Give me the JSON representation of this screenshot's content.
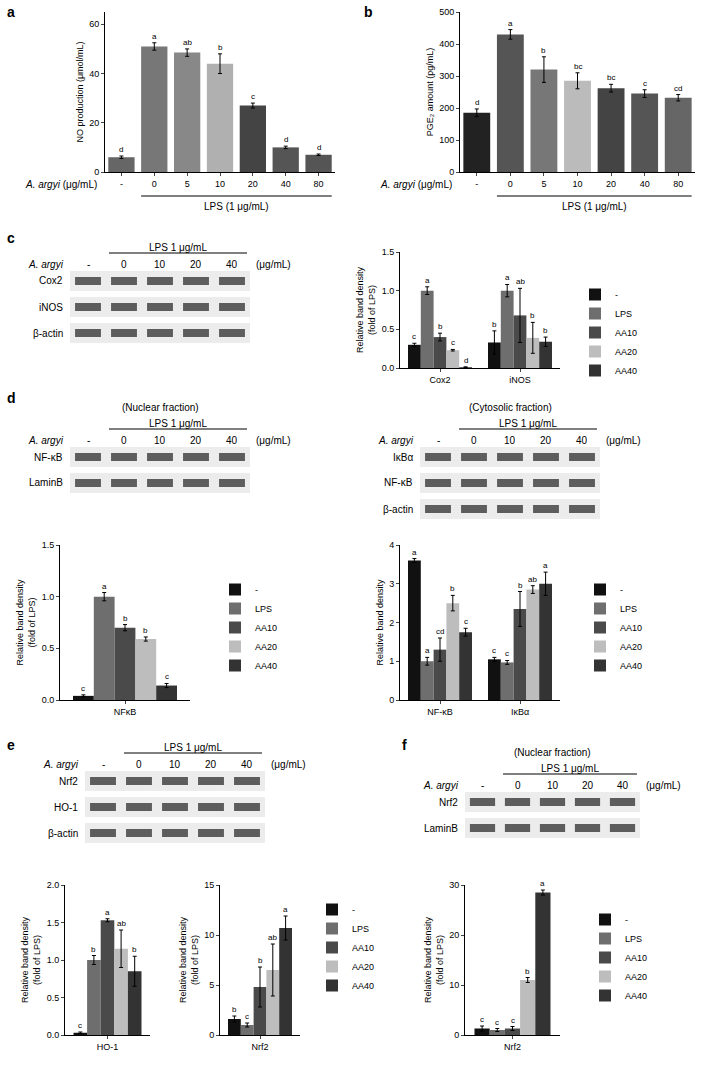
{
  "panel_labels": [
    "a",
    "b",
    "c",
    "d",
    "e",
    "f"
  ],
  "chart_data": [
    {
      "type": "bar",
      "x_label": "A. argyi (μg/mL)",
      "treatment": "LPS (1 μg/mL)",
      "y_label": "NO production (μmol/mL)",
      "categories": [
        "-",
        "0",
        "5",
        "10",
        "20",
        "40",
        "80"
      ],
      "values": [
        6,
        51,
        48.5,
        44,
        27,
        10,
        7
      ],
      "errors": [
        0.5,
        1.5,
        1.5,
        4,
        1,
        0.5,
        0.3
      ],
      "annotations": [
        "d",
        "a",
        "ab",
        "b",
        "c",
        "d",
        "d"
      ],
      "colors": [
        "#666666",
        "#777777",
        "#888888",
        "#b0b0b0",
        "#444444",
        "#555555",
        "#555555"
      ],
      "ylim": [
        0,
        65
      ],
      "yticks": [
        0,
        20,
        40,
        60
      ],
      "grid": false
    },
    {
      "type": "bar",
      "x_label": "A. argyi (μg/mL)",
      "treatment": "LPS (1 μg/mL)",
      "y_label": "PGE₂ amount (pg/mL)",
      "categories": [
        "-",
        "0",
        "5",
        "10",
        "20",
        "40",
        "80"
      ],
      "values": [
        185,
        430,
        320,
        285,
        262,
        245,
        232
      ],
      "errors": [
        12,
        15,
        40,
        25,
        12,
        12,
        10
      ],
      "annotations": [
        "d",
        "a",
        "b",
        "bc",
        "bc",
        "c",
        "cd"
      ],
      "colors": [
        "#222222",
        "#555555",
        "#777777",
        "#bbbbbb",
        "#444444",
        "#555555",
        "#666666"
      ],
      "ylim": [
        0,
        500
      ],
      "yticks": [
        0,
        100,
        200,
        300,
        400,
        500
      ],
      "grid": false
    },
    {
      "type": "bar",
      "y_label": "Relative band density\n(fold of LPS)",
      "legend": "right",
      "categories": [
        "Cox2",
        "iNOS"
      ],
      "series": [
        {
          "name": "-",
          "color": "#111111",
          "values": [
            0.3,
            0.33
          ],
          "errors": [
            0.02,
            0.15
          ],
          "annotations": [
            "c",
            "b"
          ]
        },
        {
          "name": "LPS",
          "color": "#6e6e6e",
          "values": [
            1.0,
            1.0
          ],
          "errors": [
            0.05,
            0.08
          ],
          "annotations": [
            "a",
            "a"
          ]
        },
        {
          "name": "AA10",
          "color": "#4a4a4a",
          "values": [
            0.4,
            0.68
          ],
          "errors": [
            0.05,
            0.35
          ],
          "annotations": [
            "b",
            "ab"
          ]
        },
        {
          "name": "AA20",
          "color": "#bdbdbd",
          "values": [
            0.23,
            0.39
          ],
          "errors": [
            0.01,
            0.2
          ],
          "annotations": [
            "c",
            "b"
          ]
        },
        {
          "name": "AA40",
          "color": "#333333",
          "values": [
            0.01,
            0.34
          ],
          "errors": [
            0.005,
            0.06
          ],
          "annotations": [
            "d",
            "b"
          ]
        }
      ],
      "ylim": [
        0,
        1.5
      ],
      "yticks": [
        {
          "value": 0,
          "label": "0.0"
        },
        {
          "value": 0.5,
          "label": "0.5"
        },
        {
          "value": 1,
          "label": "1.0"
        },
        {
          "value": 1.5,
          "label": "1.5"
        }
      ],
      "grid": false
    },
    {
      "type": "bar",
      "y_label": "Relative band density\n(fold of LPS)",
      "legend": "right",
      "categories": [
        "NFκB"
      ],
      "series": [
        {
          "name": "-",
          "color": "#111111",
          "values": [
            0.04
          ],
          "errors": [
            0.01
          ],
          "annotations": [
            "c"
          ]
        },
        {
          "name": "LPS",
          "color": "#6e6e6e",
          "values": [
            1.0
          ],
          "errors": [
            0.04
          ],
          "annotations": [
            "a"
          ]
        },
        {
          "name": "AA10",
          "color": "#4a4a4a",
          "values": [
            0.7
          ],
          "errors": [
            0.03
          ],
          "annotations": [
            "b"
          ]
        },
        {
          "name": "AA20",
          "color": "#bdbdbd",
          "values": [
            0.59
          ],
          "errors": [
            0.02
          ],
          "annotations": [
            "b"
          ]
        },
        {
          "name": "AA40",
          "color": "#333333",
          "values": [
            0.14
          ],
          "errors": [
            0.02
          ],
          "annotations": [
            "c"
          ]
        }
      ],
      "ylim": [
        0,
        1.5
      ],
      "yticks": [
        {
          "value": 0,
          "label": "0.0"
        },
        {
          "value": 0.5,
          "label": "0.5"
        },
        {
          "value": 1,
          "label": "1.0"
        },
        {
          "value": 1.5,
          "label": "1.5"
        }
      ],
      "grid": false
    },
    {
      "type": "bar",
      "y_label": "Relative band density",
      "legend": "right",
      "categories": [
        "NF-κB",
        "IκBα"
      ],
      "series": [
        {
          "name": "-",
          "color": "#111111",
          "values": [
            3.6,
            1.05
          ],
          "errors": [
            0.05,
            0.05
          ],
          "annotations": [
            "a",
            "c"
          ]
        },
        {
          "name": "LPS",
          "color": "#6e6e6e",
          "values": [
            1.0,
            0.97
          ],
          "errors": [
            0.1,
            0.05
          ],
          "annotations": [
            "a",
            "c"
          ]
        },
        {
          "name": "AA10",
          "color": "#4a4a4a",
          "values": [
            1.3,
            2.35
          ],
          "errors": [
            0.3,
            0.45
          ],
          "annotations": [
            "cd",
            "b"
          ]
        },
        {
          "name": "AA20",
          "color": "#bdbdbd",
          "values": [
            2.5,
            2.85
          ],
          "errors": [
            0.2,
            0.1
          ],
          "annotations": [
            "b",
            "ab"
          ]
        },
        {
          "name": "AA40",
          "color": "#333333",
          "values": [
            1.75,
            3.0
          ],
          "errors": [
            0.1,
            0.3
          ],
          "annotations": [
            "c",
            "a"
          ]
        }
      ],
      "ylim": [
        0,
        4
      ],
      "yticks": [
        0,
        1,
        2,
        3,
        4
      ],
      "grid": false
    },
    {
      "type": "bar",
      "y_label": "Relative band density\n(fold of LPS)",
      "categories": [
        "HO-1"
      ],
      "series": [
        {
          "name": "-",
          "color": "#111111",
          "values": [
            0.03
          ],
          "errors": [
            0.01
          ],
          "annotations": [
            "c"
          ]
        },
        {
          "name": "LPS",
          "color": "#6e6e6e",
          "values": [
            1.0
          ],
          "errors": [
            0.06
          ],
          "annotations": [
            "b"
          ]
        },
        {
          "name": "AA10",
          "color": "#4a4a4a",
          "values": [
            1.53
          ],
          "errors": [
            0.02
          ],
          "annotations": [
            "a"
          ]
        },
        {
          "name": "AA20",
          "color": "#bdbdbd",
          "values": [
            1.15
          ],
          "errors": [
            0.25
          ],
          "annotations": [
            "ab"
          ]
        },
        {
          "name": "AA40",
          "color": "#333333",
          "values": [
            0.85
          ],
          "errors": [
            0.2
          ],
          "annotations": [
            "b"
          ]
        }
      ],
      "ylim": [
        0,
        2
      ],
      "yticks": [
        {
          "value": 0,
          "label": "0.0"
        },
        {
          "value": 0.5,
          "label": "0.5"
        },
        {
          "value": 1,
          "label": "1.0"
        },
        {
          "value": 1.5,
          "label": "1.5"
        },
        {
          "value": 2,
          "label": "2.0"
        }
      ],
      "grid": false
    },
    {
      "type": "bar",
      "y_label": "Relative band density\n(fold of LPS)",
      "legend": "right",
      "categories": [
        "Nrf2"
      ],
      "series": [
        {
          "name": "-",
          "color": "#111111",
          "values": [
            1.6
          ],
          "errors": [
            0.3
          ],
          "annotations": [
            "b"
          ]
        },
        {
          "name": "LPS",
          "color": "#6e6e6e",
          "values": [
            1.0
          ],
          "errors": [
            0.2
          ],
          "annotations": [
            "c"
          ]
        },
        {
          "name": "AA10",
          "color": "#4a4a4a",
          "values": [
            4.8
          ],
          "errors": [
            2.0
          ],
          "annotations": [
            "b"
          ]
        },
        {
          "name": "AA20",
          "color": "#bdbdbd",
          "values": [
            6.5
          ],
          "errors": [
            2.6
          ],
          "annotations": [
            "ab"
          ]
        },
        {
          "name": "AA40",
          "color": "#333333",
          "values": [
            10.7
          ],
          "errors": [
            1.2
          ],
          "annotations": [
            "a"
          ]
        }
      ],
      "ylim": [
        0,
        15
      ],
      "yticks": [
        0,
        5,
        10,
        15
      ],
      "grid": false
    },
    {
      "type": "bar",
      "y_label": "Relative band density\n(fold of LPS)",
      "legend": "right",
      "categories": [
        "Nrf2"
      ],
      "series": [
        {
          "name": "-",
          "color": "#111111",
          "values": [
            1.3
          ],
          "errors": [
            0.5
          ],
          "annotations": [
            "c"
          ]
        },
        {
          "name": "LPS",
          "color": "#6e6e6e",
          "values": [
            1.0
          ],
          "errors": [
            0.3
          ],
          "annotations": [
            "c"
          ]
        },
        {
          "name": "AA10",
          "color": "#4a4a4a",
          "values": [
            1.3
          ],
          "errors": [
            0.4
          ],
          "annotations": [
            "c"
          ]
        },
        {
          "name": "AA20",
          "color": "#bdbdbd",
          "values": [
            11
          ],
          "errors": [
            0.5
          ],
          "annotations": [
            "b"
          ]
        },
        {
          "name": "AA40",
          "color": "#333333",
          "values": [
            28.5
          ],
          "errors": [
            0.5
          ],
          "annotations": [
            "a"
          ]
        }
      ],
      "ylim": [
        0,
        30
      ],
      "yticks": [
        0,
        10,
        20,
        30
      ],
      "grid": false
    }
  ],
  "blots": [
    {
      "treatment": "LPS 1 μg/mL",
      "dose_label": "A. argyi",
      "doses": [
        "-",
        "0",
        "10",
        "20",
        "40"
      ],
      "unit": "(μg/mL)",
      "rows": [
        "Cox2",
        "iNOS",
        "β-actin"
      ]
    },
    {
      "title": "(Nuclear fraction)",
      "treatment": "LPS 1 μg/mL",
      "dose_label": "A. argyi",
      "doses": [
        "-",
        "0",
        "10",
        "20",
        "40"
      ],
      "unit": "(μg/mL)",
      "rows": [
        "NF-κB",
        "LaminB"
      ]
    },
    {
      "title": "(Cytosolic fraction)",
      "treatment": "LPS 1 μg/mL",
      "dose_label": "A. argyi",
      "doses": [
        "-",
        "0",
        "10",
        "20",
        "40"
      ],
      "unit": "(μg/mL)",
      "rows": [
        "IκBα",
        "NF-κB",
        "β-actin"
      ]
    },
    {
      "treatment": "LPS 1 μg/mL",
      "dose_label": "A. argyi",
      "doses": [
        "-",
        "0",
        "10",
        "20",
        "40"
      ],
      "unit": "(μg/mL)",
      "rows": [
        "Nrf2",
        "HO-1",
        "β-actin"
      ]
    },
    {
      "title": "(Nuclear fraction)",
      "treatment": "LPS 1 μg/mL",
      "dose_label": "A. argyi",
      "doses": [
        "-",
        "0",
        "10",
        "20",
        "40"
      ],
      "unit": "(μg/mL)",
      "rows": [
        "Nrf2",
        "LaminB"
      ]
    }
  ]
}
